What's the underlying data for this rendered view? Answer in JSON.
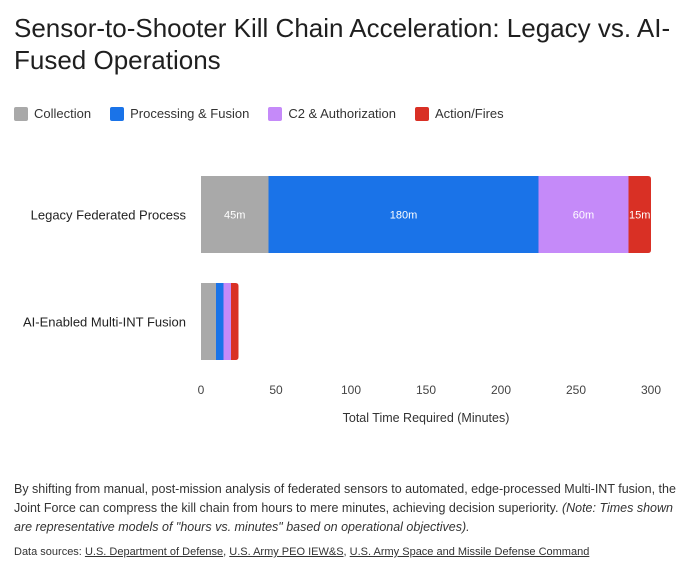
{
  "page": {
    "title": "Sensor-to-Shooter Kill Chain Acceleration: Legacy vs. AI-Fused Operations",
    "caption_main": "By shifting from manual, post-mission analysis of federated sensors to automated, edge-processed Multi-INT fusion, the Joint Force can compress the kill chain from hours to mere minutes, achieving decision superiority.",
    "caption_note": "(Note: Times shown are representative models of \"hours vs. minutes\" based on operational objectives).",
    "sources_label": "Data sources:",
    "sources": [
      "U.S. Department of Defense",
      "U.S. Army PEO IEW&S",
      "U.S. Army Space and Missile Defense Command"
    ]
  },
  "chart_data": {
    "type": "bar",
    "orientation": "horizontal",
    "stacked": true,
    "categories": [
      "Legacy Federated Process",
      "AI-Enabled Multi-INT Fusion"
    ],
    "series": [
      {
        "name": "Collection",
        "color": "#a9a9a9",
        "values": [
          45,
          10
        ]
      },
      {
        "name": "Processing & Fusion",
        "color": "#1a73e8",
        "values": [
          180,
          5
        ]
      },
      {
        "name": "C2 & Authorization",
        "color": "#c58af9",
        "values": [
          60,
          5
        ]
      },
      {
        "name": "Action/Fires",
        "color": "#d93025",
        "values": [
          15,
          5
        ]
      }
    ],
    "data_labels": [
      [
        "45m",
        "180m",
        "60m",
        "15m"
      ],
      [
        "",
        "",
        "",
        ""
      ]
    ],
    "xlabel": "Total Time Required (Minutes)",
    "ylabel": "",
    "xlim": [
      0,
      300
    ],
    "xticks": [
      "0",
      "50",
      "100",
      "150",
      "200",
      "250",
      "300"
    ],
    "legend_position": "top-left",
    "grid": false
  }
}
